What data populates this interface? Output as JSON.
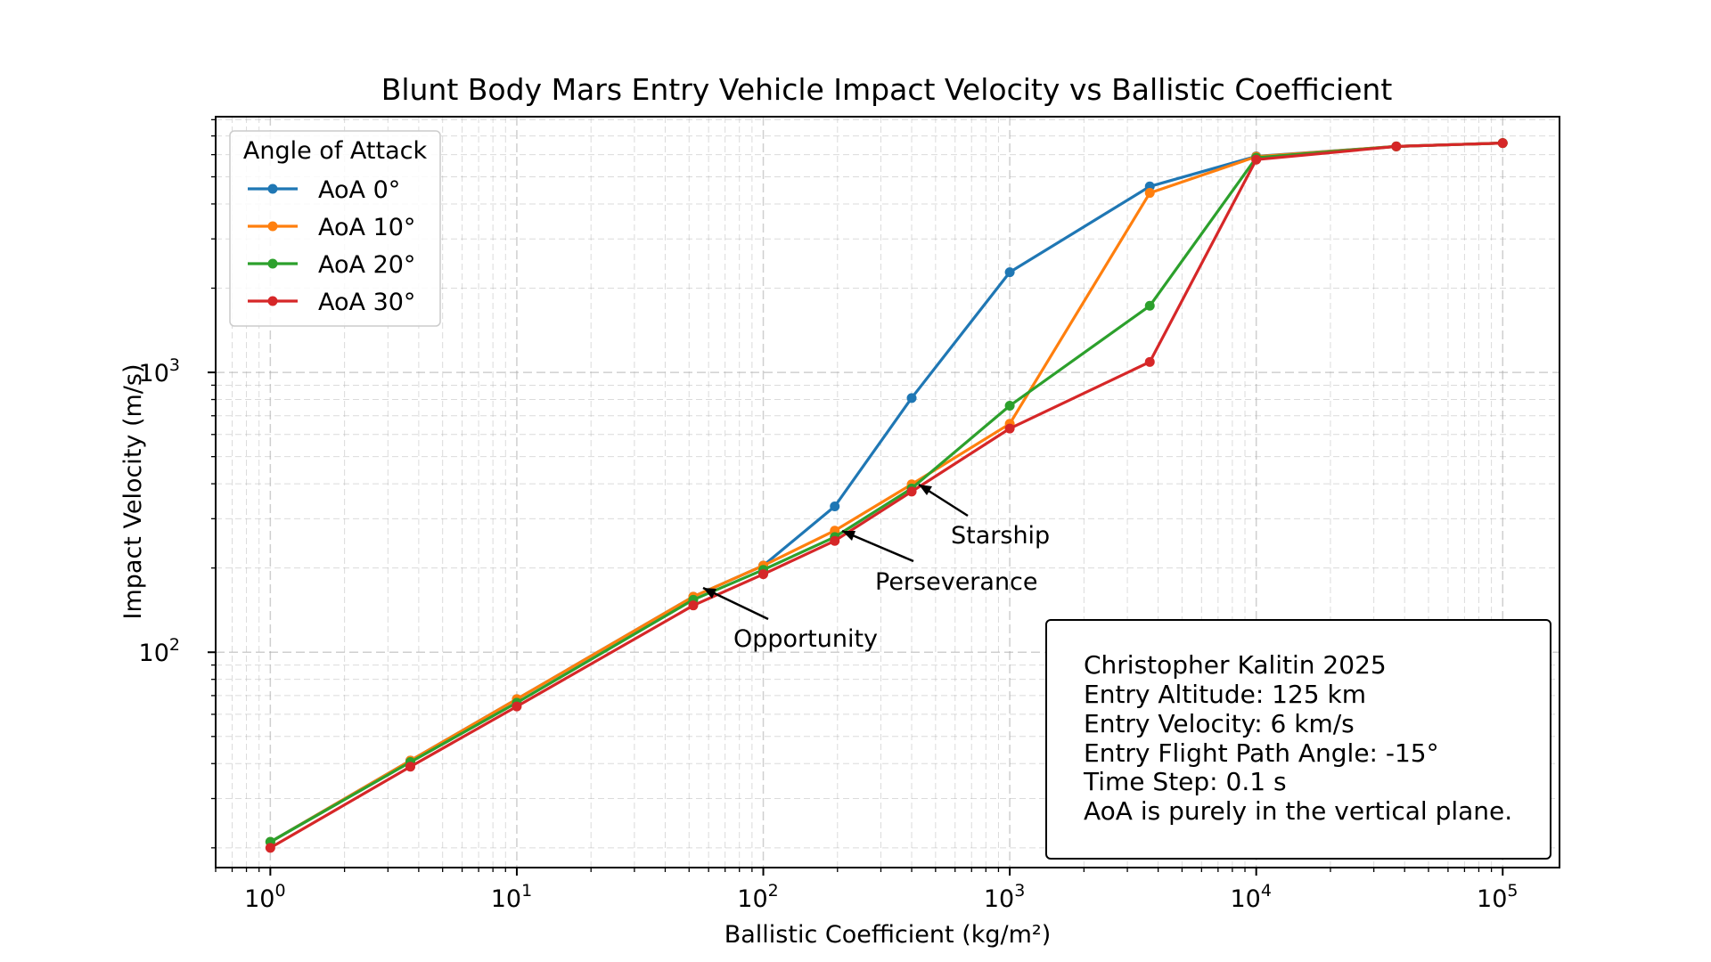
{
  "chart_data": {
    "type": "line",
    "title": "Blunt Body Mars Entry Vehicle Impact Velocity vs Ballistic Coefficient",
    "xlabel": "Ballistic Coefficient (kg/m²)",
    "ylabel": "Impact Velocity (m/s)",
    "xscale": "log",
    "yscale": "log",
    "xlim": [
      0.6,
      170000
    ],
    "ylim": [
      17,
      8200
    ],
    "grid": true,
    "x_ticks": [
      {
        "base": "10",
        "exp": "0",
        "value": 1
      },
      {
        "base": "10",
        "exp": "1",
        "value": 10
      },
      {
        "base": "10",
        "exp": "2",
        "value": 100
      },
      {
        "base": "10",
        "exp": "3",
        "value": 1000
      },
      {
        "base": "10",
        "exp": "4",
        "value": 10000
      },
      {
        "base": "10",
        "exp": "5",
        "value": 100000
      }
    ],
    "y_ticks": [
      {
        "base": "10",
        "exp": "2",
        "value": 100
      },
      {
        "base": "10",
        "exp": "3",
        "value": 1000
      }
    ],
    "x": [
      1,
      3.7,
      10,
      52,
      100,
      195,
      400,
      1000,
      3700,
      10000,
      37000,
      100000
    ],
    "series": [
      {
        "name": "AoA 0°",
        "color": "#1f77b4",
        "values": [
          21,
          41,
          68,
          158,
          204,
          332,
          810,
          2280,
          4620,
          5920,
          6420,
          6600
        ]
      },
      {
        "name": "AoA 10°",
        "color": "#ff7f0e",
        "values": [
          21,
          41,
          68,
          158,
          204,
          272,
          398,
          655,
          4380,
          5900,
          6420,
          6600
        ]
      },
      {
        "name": "AoA 20°",
        "color": "#2ca02c",
        "values": [
          21,
          40.5,
          66,
          154,
          197,
          258,
          385,
          760,
          1730,
          5850,
          6420,
          6600
        ]
      },
      {
        "name": "AoA 30°",
        "color": "#d62728",
        "values": [
          20,
          39,
          64,
          147,
          190,
          250,
          375,
          630,
          1090,
          5760,
          6420,
          6600
        ]
      }
    ],
    "legend": {
      "title": "Angle of Attack",
      "placement": "upper-left"
    },
    "annotations": [
      {
        "text": "Starship",
        "x": 400,
        "y": 380
      },
      {
        "text": "Perseverance",
        "x": 200,
        "y": 252
      },
      {
        "text": "Opportunity",
        "x": 55,
        "y": 153
      }
    ],
    "info_box": {
      "placement": "lower-right",
      "lines": [
        "Christopher Kalitin 2025",
        "Entry Altitude: 125 km",
        "Entry Velocity: 6 km/s",
        "Entry Flight Path Angle: -15°",
        "Time Step: 0.1 s",
        "AoA is purely in the vertical plane."
      ]
    }
  }
}
